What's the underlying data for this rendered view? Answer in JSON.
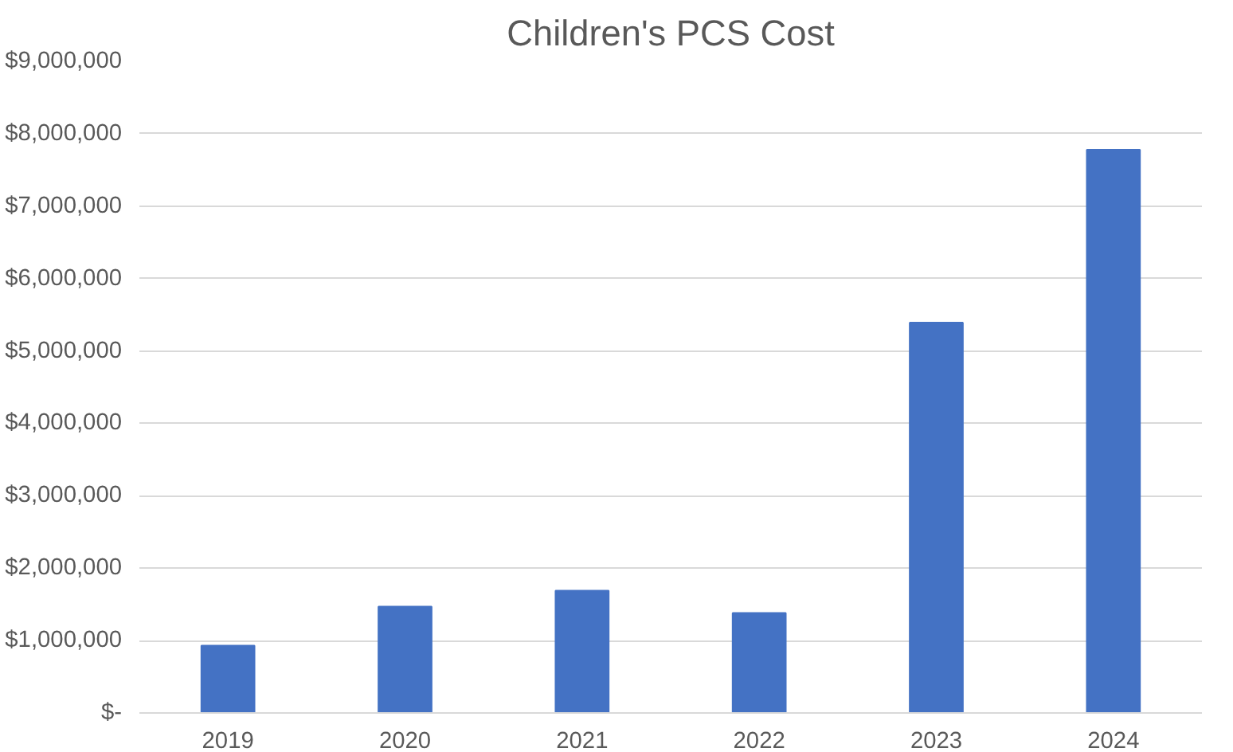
{
  "chart_data": {
    "type": "bar",
    "title": "Children's PCS Cost",
    "categories": [
      "2019",
      "2020",
      "2021",
      "2022",
      "2023",
      "2024"
    ],
    "values": [
      930000,
      1470000,
      1690000,
      1380000,
      5390000,
      7780000
    ],
    "color": "#4472c4",
    "ylim": [
      0,
      9000000
    ],
    "yticks": [
      {
        "value": 0,
        "label": "$-"
      },
      {
        "value": 1000000,
        "label": "$1,000,000"
      },
      {
        "value": 2000000,
        "label": "$2,000,000"
      },
      {
        "value": 3000000,
        "label": "$3,000,000"
      },
      {
        "value": 4000000,
        "label": "$4,000,000"
      },
      {
        "value": 5000000,
        "label": "$5,000,000"
      },
      {
        "value": 6000000,
        "label": "$6,000,000"
      },
      {
        "value": 7000000,
        "label": "$7,000,000"
      },
      {
        "value": 8000000,
        "label": "$8,000,000"
      },
      {
        "value": 9000000,
        "label": "$9,000,000"
      }
    ],
    "grid": "y"
  }
}
